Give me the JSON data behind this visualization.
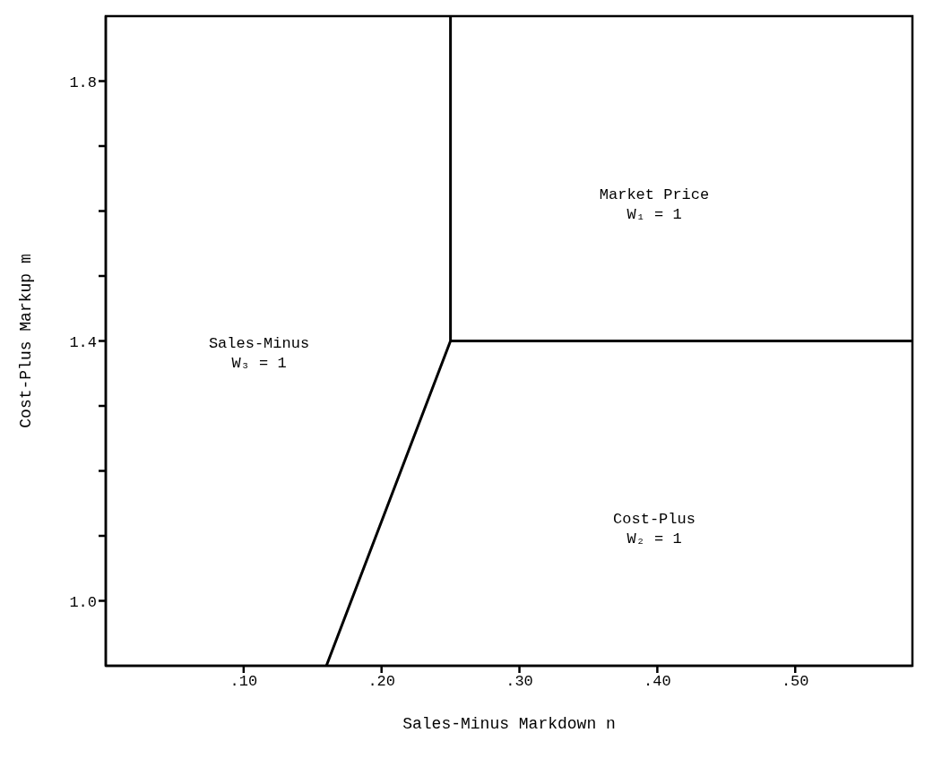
{
  "chart_data": {
    "type": "line",
    "xlabel": "Sales-Minus Markdown n",
    "ylabel": "Cost-Plus Markup m",
    "xlim": [
      0,
      0.585
    ],
    "ylim": [
      0.9,
      1.9
    ],
    "xticks": [
      {
        "value": 0.1,
        "label": ".10"
      },
      {
        "value": 0.2,
        "label": ".20"
      },
      {
        "value": 0.3,
        "label": ".30"
      },
      {
        "value": 0.4,
        "label": ".40"
      },
      {
        "value": 0.5,
        "label": ".50"
      }
    ],
    "yticks": [
      {
        "value": 1,
        "label": "1.0"
      },
      {
        "value": 1.1,
        "label": null
      },
      {
        "value": 1.2,
        "label": null
      },
      {
        "value": 1.3,
        "label": null
      },
      1.4,
      {
        "value": 1.5,
        "label": null
      },
      {
        "value": 1.6,
        "label": null
      },
      {
        "value": 1.7,
        "label": null
      },
      1.8
    ],
    "series": [
      {
        "color": "#000000",
        "x": [
          0.16,
          0.25,
          0.25,
          0.25,
          0.585
        ],
        "values": [
          0.9,
          1.4,
          1.9,
          1.4,
          1.4
        ]
      }
    ],
    "annotations": [
      "Market Price\nW₁ = 1",
      "Sales-Minus\nW₃ = 1",
      "Cost-Plus\nW₂ = 1"
    ],
    "grid": false,
    "marker": "none",
    "line_style": "solid"
  }
}
